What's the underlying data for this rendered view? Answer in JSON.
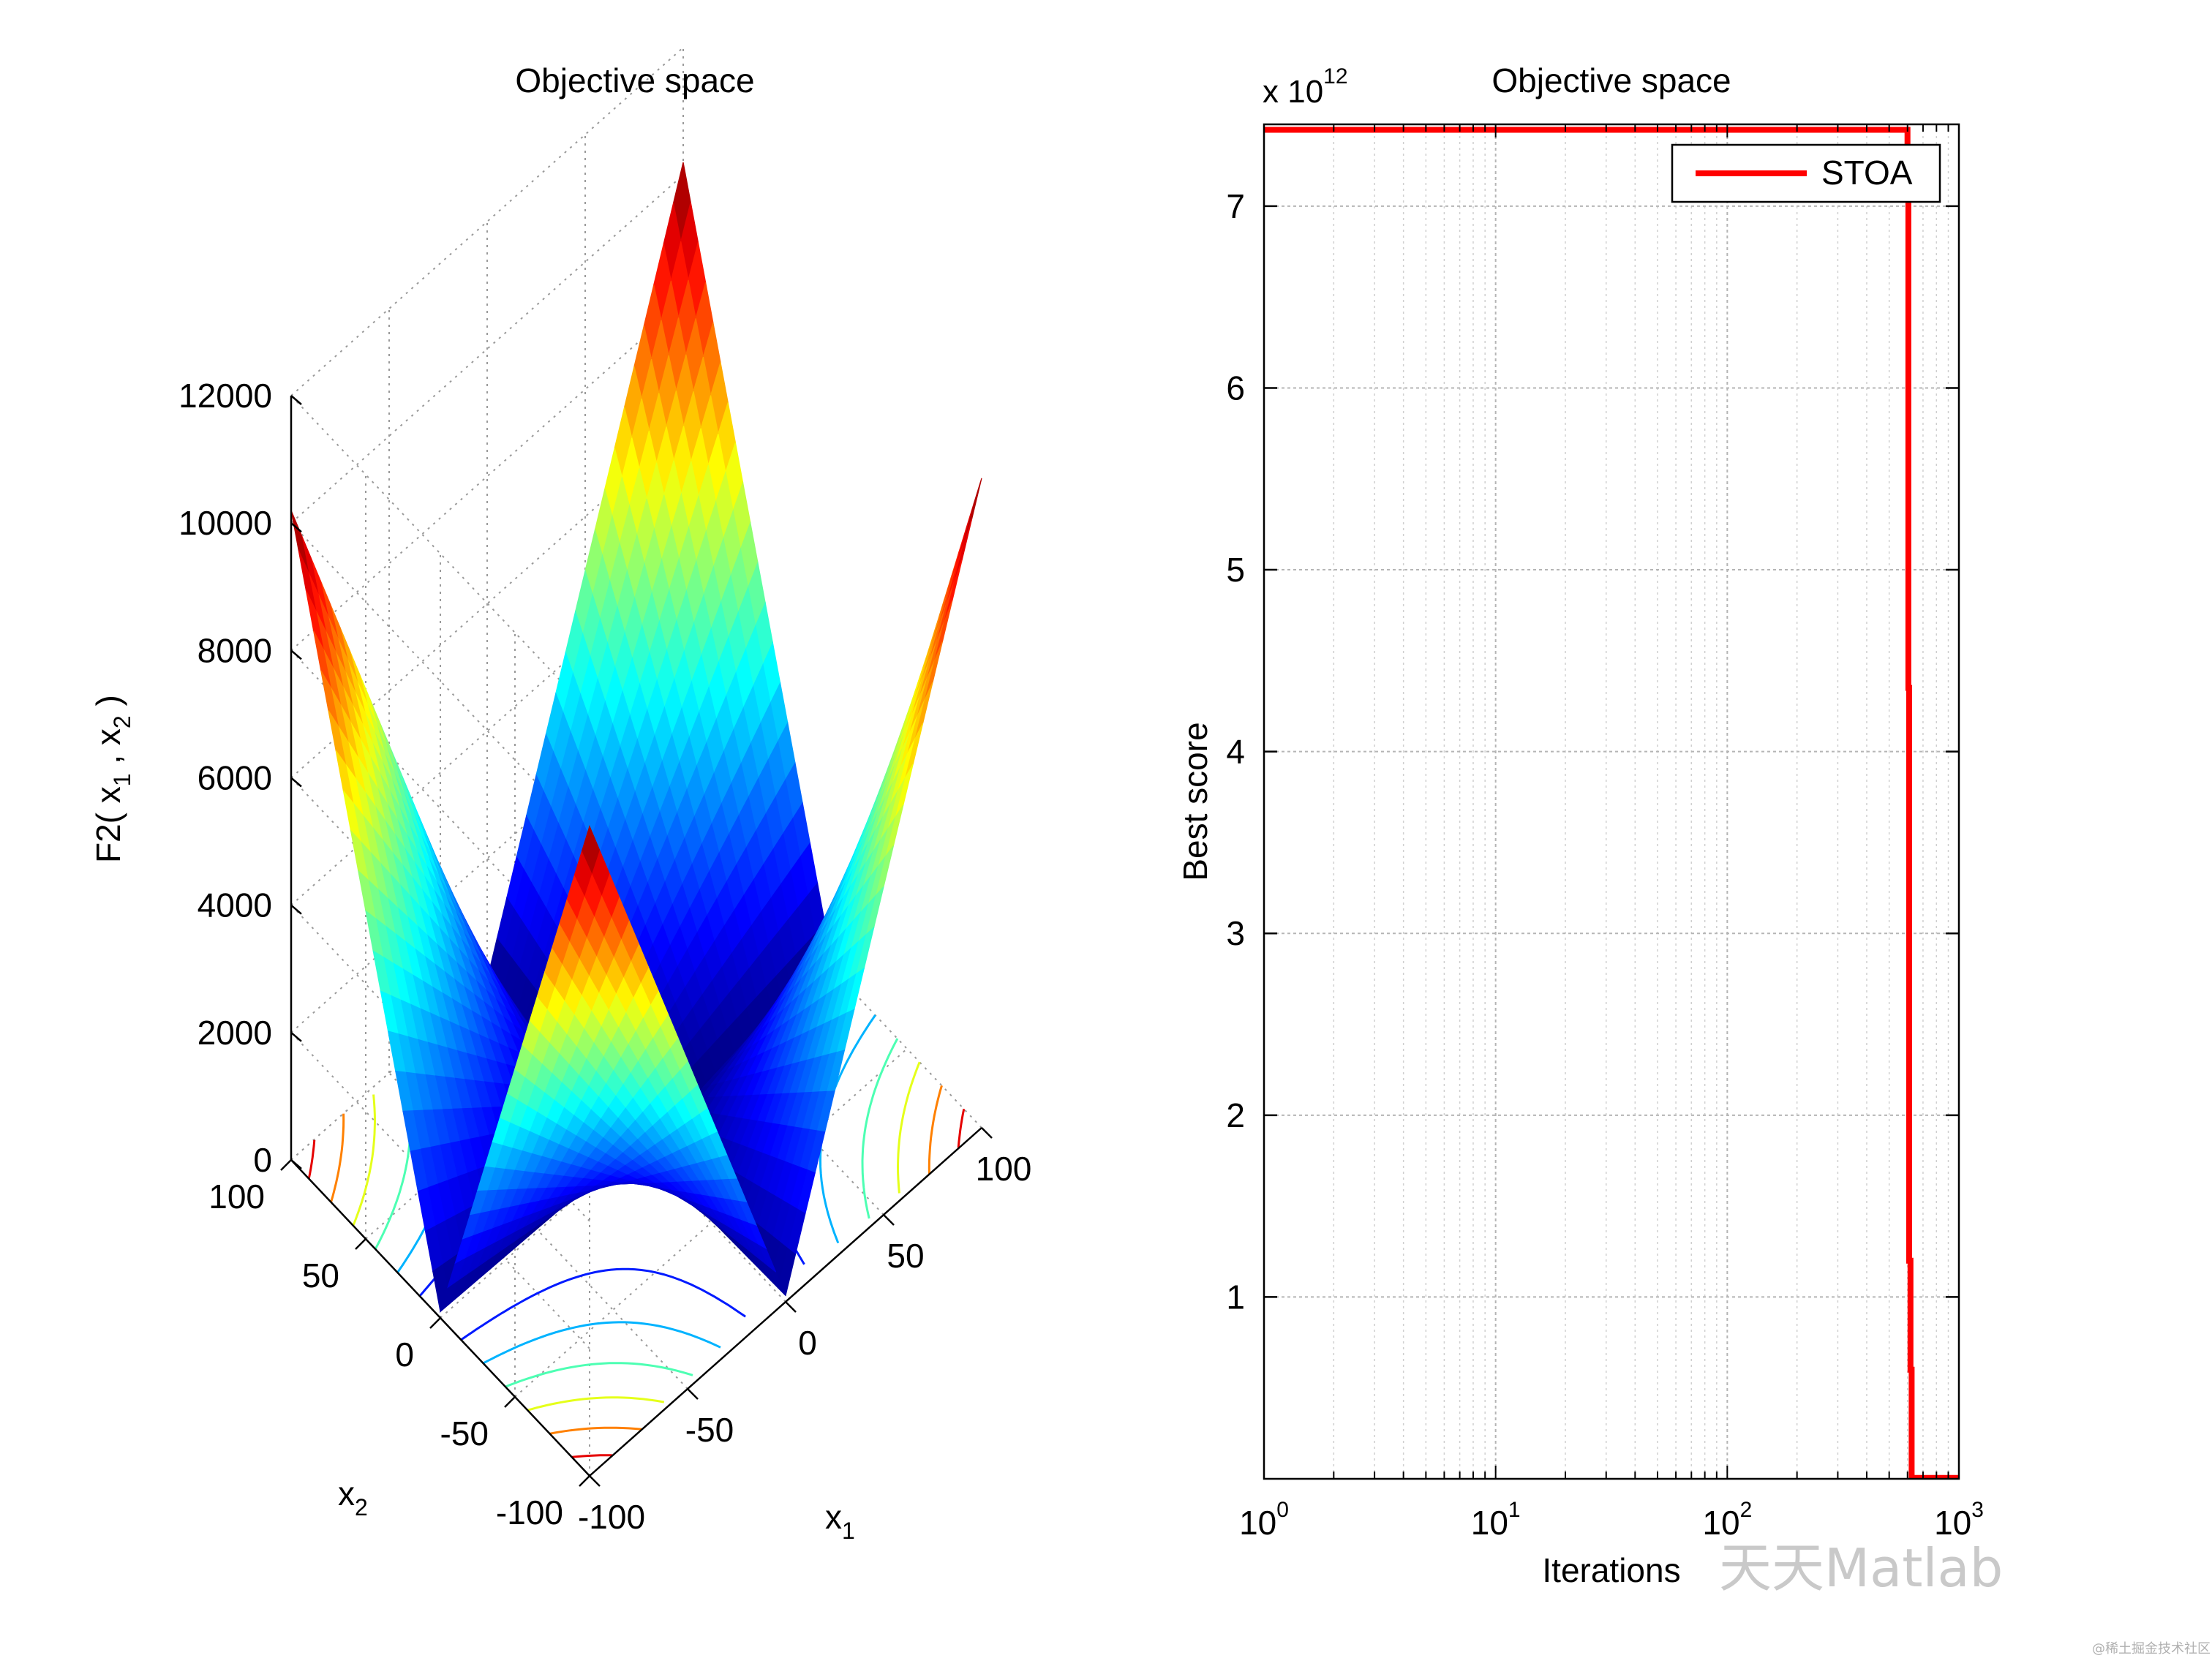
{
  "chart_data": [
    {
      "type": "surface",
      "title": "Objective space",
      "function_label": "F2",
      "xlabel": "x",
      "xlabel_sub": "1",
      "ylabel": "x",
      "ylabel_sub": "2",
      "zlabel_prefix": "F2( x",
      "zlabel_sub1": "1",
      "zlabel_mid": " , x",
      "zlabel_sub2": "2",
      "zlabel_suffix": " )",
      "xlim": [
        -100,
        100
      ],
      "ylim": [
        -100,
        100
      ],
      "zlim": [
        0,
        12000
      ],
      "x_ticks": [
        "-100",
        "-50",
        "0",
        "50",
        "100"
      ],
      "y_ticks": [
        "-100",
        "-50",
        "0",
        "50",
        "100"
      ],
      "z_ticks": [
        "0",
        "2000",
        "4000",
        "6000",
        "8000",
        "10000",
        "12000"
      ],
      "colormap": "jet",
      "contour_projection": true
    },
    {
      "type": "line",
      "title": "Objective space",
      "xlabel": "Iterations",
      "ylabel": "Best score",
      "xscale": "log",
      "xlim": [
        1,
        1000
      ],
      "ylim": [
        0,
        7450000000000.0
      ],
      "y_exponent_text": "x 10",
      "y_exponent_power": "12",
      "x_tick_base": "10",
      "x_ticks": [
        {
          "base": "10",
          "power": "0",
          "value": 1
        },
        {
          "base": "10",
          "power": "1",
          "value": 10
        },
        {
          "base": "10",
          "power": "2",
          "value": 100
        },
        {
          "base": "10",
          "power": "3",
          "value": 1000
        }
      ],
      "y_ticks": [
        "1",
        "2",
        "3",
        "4",
        "5",
        "6",
        "7"
      ],
      "grid": true,
      "legend_position": "top-right",
      "series": [
        {
          "name": "STOA",
          "color": "#ff0000",
          "x": [
            1,
            600,
            600,
            605,
            605,
            610,
            610,
            618,
            618,
            625,
            625,
            1000
          ],
          "y": [
            7420000000000.0,
            7420000000000.0,
            7100000000000.0,
            7100000000000.0,
            4350000000000.0,
            4350000000000.0,
            1200000000000.0,
            1200000000000.0,
            600000000000.0,
            600000000000.0,
            5000000000.0,
            5000000000.0
          ]
        }
      ]
    }
  ],
  "watermark": "天天Matlab",
  "watermark_small": "@稀土掘金技术社区"
}
